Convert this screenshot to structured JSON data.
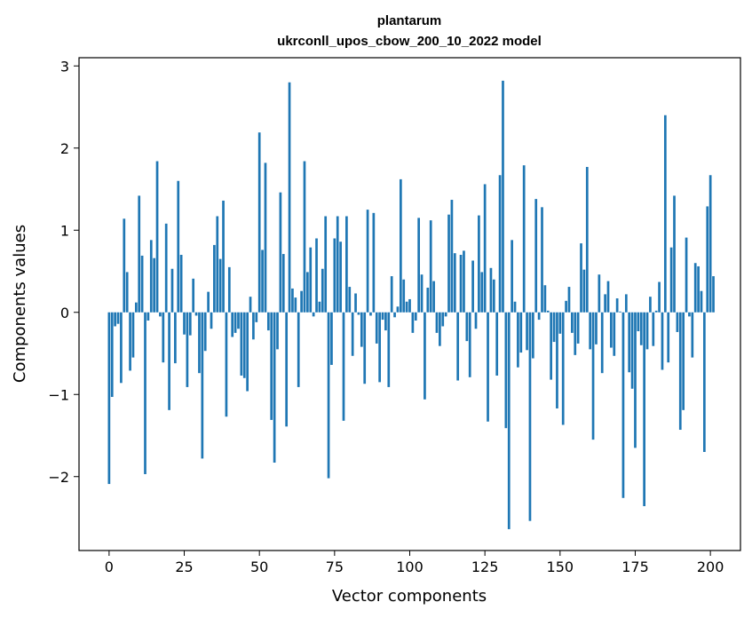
{
  "chart_data": {
    "type": "bar",
    "title": "plantarum",
    "subtitle": "ukrconll_upos_cbow_200_10_2022 model",
    "xlabel": "Vector components",
    "ylabel": "Components values",
    "xlim": [
      -10,
      210
    ],
    "ylim": [
      -2.9,
      3.1
    ],
    "xticks": [
      0,
      25,
      50,
      75,
      100,
      125,
      150,
      175,
      200
    ],
    "yticks": [
      -2,
      -1,
      0,
      1,
      2,
      3
    ],
    "ytick_labels": [
      "−2",
      "−1",
      "0",
      "1",
      "2",
      "3"
    ],
    "bar_color": "#1f77b4",
    "grid": false,
    "values": [
      -2.09,
      -1.03,
      -0.17,
      -0.14,
      -0.86,
      1.14,
      0.49,
      -0.71,
      -0.55,
      0.12,
      1.42,
      0.69,
      -1.97,
      -0.1,
      0.88,
      0.66,
      1.84,
      -0.05,
      -0.61,
      1.08,
      -1.19,
      0.53,
      -0.62,
      1.6,
      0.7,
      -0.27,
      -0.91,
      -0.28,
      0.41,
      -0.04,
      -0.74,
      -1.78,
      -0.47,
      0.25,
      -0.2,
      0.82,
      1.17,
      0.65,
      1.36,
      -1.27,
      0.55,
      -0.3,
      -0.25,
      -0.2,
      -0.77,
      -0.8,
      -0.96,
      0.19,
      -0.33,
      -0.12,
      2.19,
      0.76,
      1.82,
      -0.22,
      -1.31,
      -1.83,
      -0.45,
      1.46,
      0.71,
      -1.39,
      2.8,
      0.29,
      0.18,
      -0.91,
      0.26,
      1.84,
      0.49,
      0.79,
      -0.05,
      0.9,
      0.13,
      0.53,
      1.17,
      -2.02,
      -0.64,
      0.9,
      1.17,
      0.86,
      -1.32,
      1.17,
      0.31,
      -0.53,
      0.23,
      -0.03,
      -0.42,
      -0.87,
      1.25,
      -0.04,
      1.21,
      -0.38,
      -0.85,
      -0.09,
      -0.22,
      -0.91,
      0.44,
      -0.06,
      0.07,
      1.62,
      0.4,
      0.13,
      0.16,
      -0.25,
      -0.1,
      1.15,
      0.46,
      -1.06,
      0.3,
      1.12,
      0.38,
      -0.25,
      -0.41,
      -0.17,
      -0.05,
      1.19,
      1.37,
      0.72,
      -0.83,
      0.7,
      0.75,
      -0.35,
      -0.79,
      0.63,
      -0.2,
      1.18,
      0.49,
      1.56,
      -1.33,
      0.54,
      0.4,
      -0.77,
      1.67,
      2.82,
      -1.41,
      -2.64,
      0.88,
      0.13,
      -0.67,
      -0.49,
      1.79,
      -0.46,
      -2.54,
      -0.56,
      1.38,
      -0.09,
      1.28,
      0.33,
      0.02,
      -0.82,
      -0.36,
      -1.17,
      -0.26,
      -1.37,
      0.14,
      0.31,
      -0.25,
      -0.52,
      -0.38,
      0.84,
      0.52,
      1.77,
      -0.45,
      -1.55,
      -0.39,
      0.46,
      -0.74,
      0.22,
      0.38,
      -0.43,
      -0.53,
      0.17,
      0.01,
      -2.26,
      0.22,
      -0.73,
      -0.93,
      -1.65,
      -0.23,
      -0.4,
      -2.36,
      -0.45,
      0.19,
      -0.41,
      0.02,
      0.37,
      -0.7,
      2.4,
      -0.61,
      0.79,
      1.42,
      -0.24,
      -1.43,
      -1.19,
      0.91,
      -0.05,
      -0.55,
      0.6,
      0.56,
      0.26,
      -1.7,
      1.29,
      1.67,
      0.44
    ]
  }
}
